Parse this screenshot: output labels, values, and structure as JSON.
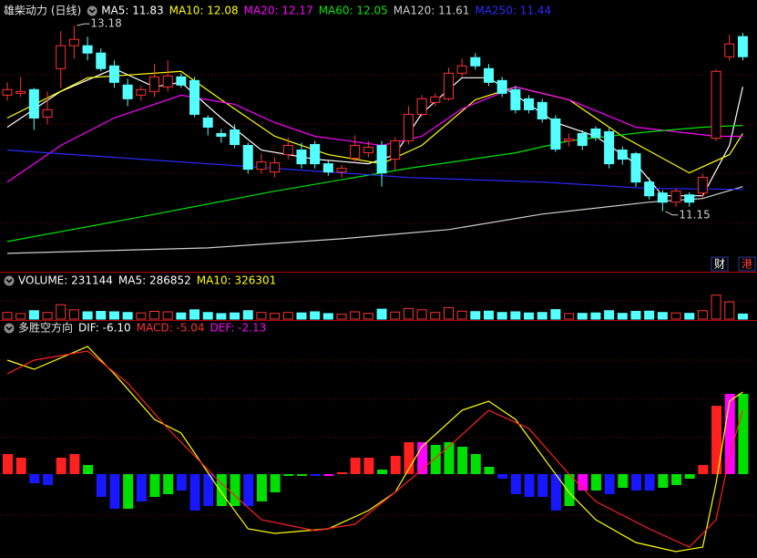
{
  "chart_data": [
    {
      "type": "candlestick",
      "title": "雄柴动力 (日线)",
      "xlim": [
        -0.545,
        56.06
      ],
      "ylim": [
        10.5,
        13.46
      ],
      "up_color": "#ff3232",
      "down_color": "#54ffff",
      "open": [
        12.42,
        12.44,
        12.48,
        12.18,
        12.71,
        12.96,
        12.96,
        12.88,
        12.74,
        12.53,
        12.42,
        12.46,
        12.51,
        12.62,
        12.58,
        12.17,
        12.0,
        12.04,
        11.87,
        11.61,
        11.58,
        11.77,
        11.82,
        11.88,
        11.67,
        11.58,
        11.73,
        11.79,
        11.87,
        11.72,
        11.92,
        12.21,
        12.34,
        12.38,
        12.66,
        12.83,
        12.71,
        12.58,
        12.48,
        12.38,
        12.34,
        12.16,
        11.92,
        12.0,
        12.05,
        12.02,
        11.82,
        11.78,
        11.47,
        11.35,
        11.25,
        11.33,
        11.35,
        11.95,
        12.84,
        13.06
      ],
      "high": [
        12.56,
        12.62,
        12.5,
        12.46,
        13.12,
        13.18,
        13.06,
        12.93,
        12.8,
        12.6,
        12.52,
        12.76,
        12.8,
        12.66,
        12.62,
        12.2,
        12.05,
        12.1,
        11.9,
        11.78,
        11.74,
        11.96,
        11.9,
        11.92,
        11.7,
        11.66,
        11.98,
        11.92,
        11.92,
        11.96,
        12.3,
        12.42,
        12.44,
        12.72,
        12.82,
        12.88,
        12.76,
        12.62,
        12.52,
        12.42,
        12.38,
        12.2,
        12.0,
        12.04,
        12.08,
        12.06,
        11.86,
        11.8,
        11.52,
        11.38,
        11.4,
        11.36,
        11.56,
        12.7,
        13.08,
        13.1
      ],
      "low": [
        12.36,
        12.4,
        12.04,
        12.1,
        12.5,
        12.82,
        12.8,
        12.68,
        12.5,
        12.3,
        12.36,
        12.4,
        12.46,
        12.5,
        12.18,
        11.98,
        11.9,
        11.84,
        11.56,
        11.56,
        11.52,
        11.72,
        11.62,
        11.62,
        11.54,
        11.52,
        11.68,
        11.74,
        11.42,
        11.6,
        11.88,
        12.18,
        12.3,
        12.36,
        12.62,
        12.7,
        12.52,
        12.4,
        12.22,
        12.22,
        12.12,
        11.8,
        11.86,
        11.82,
        11.92,
        11.62,
        11.66,
        11.42,
        11.28,
        11.15,
        11.2,
        11.2,
        11.3,
        11.92,
        12.8,
        12.8
      ],
      "close": [
        12.48,
        12.46,
        12.17,
        12.26,
        12.96,
        13.03,
        12.88,
        12.71,
        12.56,
        12.38,
        12.48,
        12.62,
        12.63,
        12.53,
        12.21,
        12.07,
        11.97,
        11.88,
        11.61,
        11.69,
        11.68,
        11.87,
        11.67,
        11.67,
        11.58,
        11.62,
        11.87,
        11.85,
        11.57,
        11.92,
        12.21,
        12.38,
        12.4,
        12.66,
        12.74,
        12.74,
        12.56,
        12.44,
        12.26,
        12.26,
        12.16,
        11.83,
        11.94,
        11.87,
        11.96,
        11.67,
        11.72,
        11.47,
        11.32,
        11.25,
        11.37,
        11.25,
        11.52,
        12.68,
        12.98,
        12.84
      ],
      "series": [
        {
          "name": "MA5: 11.83",
          "color": "#ffffff",
          "x": [
            0,
            4,
            8,
            11,
            13,
            16,
            19,
            23,
            27,
            29,
            31,
            34,
            36,
            38,
            41,
            44,
            47,
            49,
            52,
            54,
            55
          ],
          "values": [
            12.07,
            12.46,
            12.71,
            12.51,
            12.56,
            12.17,
            11.82,
            11.72,
            11.67,
            11.77,
            12.22,
            12.61,
            12.61,
            12.42,
            12.12,
            11.97,
            11.67,
            11.32,
            11.32,
            11.87,
            12.51
          ]
        },
        {
          "name": "MA10: 12.08",
          "color": "#ffff00",
          "x": [
            0,
            6,
            13,
            16,
            20,
            24,
            28,
            31,
            35,
            38,
            42,
            46,
            51,
            54,
            55
          ],
          "values": [
            12.17,
            12.61,
            12.68,
            12.37,
            11.97,
            11.77,
            11.67,
            11.87,
            12.37,
            12.51,
            12.37,
            11.97,
            11.57,
            11.77,
            12.0
          ]
        },
        {
          "name": "MA20: 12.17",
          "color": "#ff00ff",
          "x": [
            0,
            4,
            8,
            13,
            17,
            20,
            23,
            28,
            31,
            34,
            38,
            42,
            47,
            53,
            55
          ],
          "values": [
            11.47,
            11.87,
            12.17,
            12.42,
            12.32,
            12.12,
            11.97,
            11.87,
            11.97,
            12.27,
            12.51,
            12.37,
            12.07,
            11.97,
            11.97
          ]
        },
        {
          "name": "MA60: 12.05",
          "color": "#00e600",
          "x": [
            0,
            10,
            20,
            30,
            38,
            42,
            48,
            52,
            55
          ],
          "values": [
            10.82,
            11.09,
            11.37,
            11.62,
            11.79,
            11.92,
            12.02,
            12.07,
            12.09
          ]
        },
        {
          "name": "MA120: 11.61",
          "color": "#d0d0d0",
          "x": [
            0,
            15,
            25,
            33,
            40,
            48,
            52,
            55
          ],
          "values": [
            10.69,
            10.75,
            10.85,
            10.95,
            11.12,
            11.25,
            11.29,
            11.42
          ]
        },
        {
          "name": "MA250: 11.44",
          "color": "#2a2aff",
          "x": [
            0,
            10,
            20,
            30,
            40,
            48,
            55
          ],
          "values": [
            11.82,
            11.72,
            11.62,
            11.52,
            11.47,
            11.4,
            11.39
          ]
        }
      ],
      "max_marker": {
        "value": 13.18
      },
      "min_marker": {
        "value": 11.15
      },
      "tags": [
        "财",
        "港"
      ]
    },
    {
      "type": "bar",
      "xlim": [
        -0.545,
        56.06
      ],
      "ylim": [
        0,
        1400000
      ],
      "series": [
        {
          "name": "VOLUME: 231144",
          "color": "#ffffff",
          "values": [
            300000,
            250000,
            380000,
            300000,
            650000,
            420000,
            330000,
            350000,
            330000,
            300000,
            280000,
            350000,
            330000,
            280000,
            420000,
            300000,
            250000,
            280000,
            380000,
            300000,
            260000,
            300000,
            280000,
            330000,
            250000,
            220000,
            330000,
            260000,
            450000,
            320000,
            480000,
            420000,
            300000,
            520000,
            360000,
            340000,
            360000,
            300000,
            330000,
            280000,
            300000,
            430000,
            250000,
            260000,
            280000,
            380000,
            260000,
            350000,
            360000,
            300000,
            280000,
            260000,
            380000,
            1080000,
            780000,
            231144
          ]
        }
      ],
      "legend": [
        {
          "name": "MA5: 286852",
          "color": "#ffffff"
        },
        {
          "name": "MA10: 326301",
          "color": "#ffff00"
        }
      ]
    },
    {
      "type": "macd",
      "title": "多胜空方向",
      "xlim": [
        -0.545,
        56.06
      ],
      "ylim": [
        -92,
        165
      ],
      "series": [
        {
          "name": "DIF: -6.10",
          "legend_color": "#ffffff",
          "color": "#ffff00",
          "x": [
            0,
            2,
            6,
            8,
            11,
            13,
            16,
            18,
            20,
            24,
            27,
            29,
            31,
            34,
            36,
            38,
            40,
            42,
            44,
            47,
            50,
            52,
            53,
            54,
            55
          ],
          "values": [
            125,
            115,
            140,
            110,
            60,
            45,
            -20,
            -60,
            -65,
            -60,
            -40,
            -20,
            30,
            70,
            80,
            60,
            20,
            -20,
            -50,
            -75,
            -85,
            -80,
            -10,
            80,
            90
          ]
        },
        {
          "name": "DEF: -2.13",
          "legend_color": "#ff00ff",
          "color": "#ff2020",
          "x": [
            0,
            2,
            6,
            9,
            12,
            16,
            19,
            23,
            26,
            29,
            33,
            36,
            39,
            42,
            44,
            48,
            51,
            53,
            54,
            55
          ],
          "values": [
            110,
            125,
            135,
            100,
            50,
            -10,
            -50,
            -62,
            -55,
            -20,
            30,
            70,
            50,
            0,
            -30,
            -60,
            -80,
            -50,
            20,
            70
          ]
        }
      ],
      "histogram": {
        "name": "MACD: -5.04",
        "legend_color": "#ff3030",
        "values": [
          22,
          18,
          -10,
          -12,
          18,
          22,
          10,
          -25,
          -38,
          -38,
          -30,
          -25,
          -22,
          -18,
          -40,
          -35,
          -35,
          -35,
          -35,
          -30,
          -20,
          -2,
          -2,
          -2,
          -2,
          2,
          18,
          18,
          5,
          20,
          35,
          35,
          32,
          35,
          30,
          22,
          8,
          -5,
          -22,
          -25,
          -25,
          -40,
          -35,
          -18,
          -18,
          -22,
          -15,
          -18,
          -18,
          -15,
          -12,
          -5,
          10,
          75,
          88,
          88
        ],
        "colors": [
          "#ff2020",
          "#ff2020",
          "#1818ff",
          "#1818ff",
          "#ff2020",
          "#ff2020",
          "#00e000",
          "#1818ff",
          "#1818ff",
          "#00e000",
          "#1818ff",
          "#00e000",
          "#00e000",
          "#1818ff",
          "#1818ff",
          "#1818ff",
          "#00e000",
          "#00e000",
          "#1818ff",
          "#00e000",
          "#00e000",
          "#00e000",
          "#00e000",
          "#1818ff",
          "#ff00ff",
          "#ff2020",
          "#ff2020",
          "#ff2020",
          "#00e000",
          "#ff2020",
          "#ff2020",
          "#ff00ff",
          "#00e000",
          "#00e000",
          "#00e000",
          "#00e000",
          "#00e000",
          "#1818ff",
          "#1818ff",
          "#1818ff",
          "#1818ff",
          "#1818ff",
          "#00e000",
          "#ff00ff",
          "#00e000",
          "#1818ff",
          "#00e000",
          "#1818ff",
          "#1818ff",
          "#00e000",
          "#00e000",
          "#00e000",
          "#ff2020",
          "#ff2020",
          "#ff00ff",
          "#00e000"
        ]
      }
    }
  ]
}
